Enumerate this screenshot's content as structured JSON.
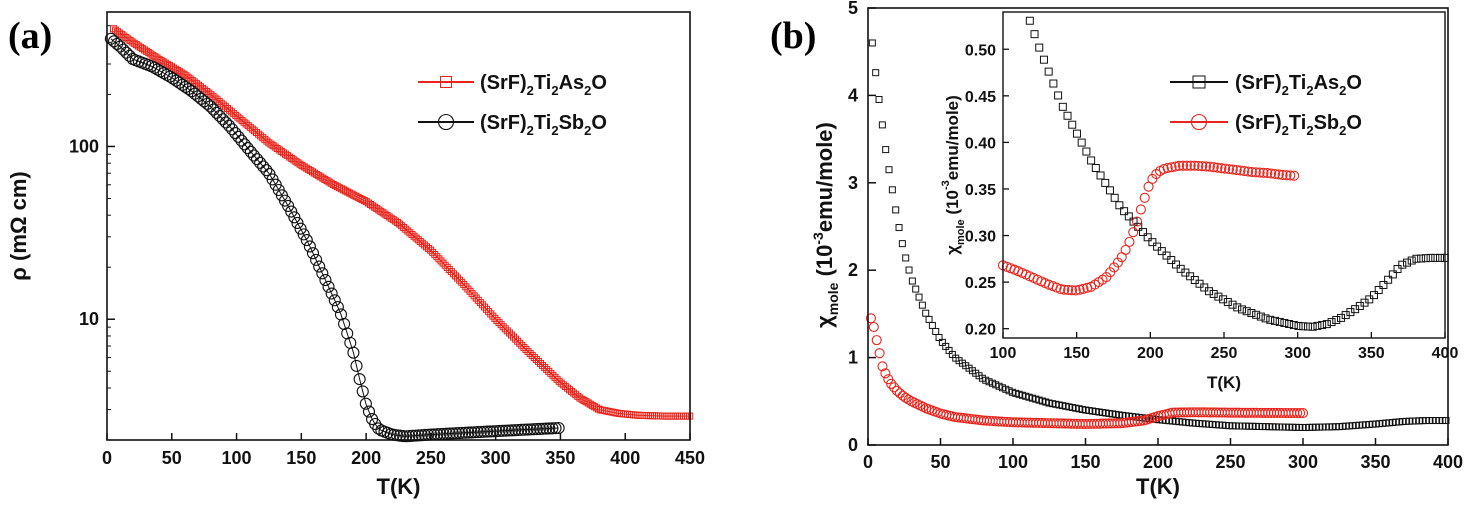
{
  "chart_data": [
    {
      "panel": "(a)",
      "type": "scatter",
      "xlabel": "T(K)",
      "ylabel": "ρ (mΩ cm)",
      "yscale": "log",
      "xlim": [
        0,
        450
      ],
      "ylim": [
        2,
        600
      ],
      "xticks": [
        0,
        50,
        100,
        150,
        200,
        250,
        300,
        350,
        400,
        450
      ],
      "yticks": [
        10,
        100
      ],
      "legend_position": "top-right",
      "series": [
        {
          "name": "(SrF)2Ti2As2O",
          "legend": {
            "base": "(SrF)",
            "s1": "2",
            "mid1": "Ti",
            "s2": "2",
            "mid2": "As",
            "s3": "2",
            "tail": "O"
          },
          "color": "#e8251c",
          "marker": "square",
          "x": [
            5,
            20,
            40,
            60,
            80,
            100,
            125,
            150,
            175,
            200,
            225,
            250,
            275,
            300,
            325,
            350,
            365,
            380,
            395,
            410,
            430,
            450
          ],
          "y": [
            480,
            400,
            320,
            260,
            200,
            150,
            105,
            78,
            60,
            48,
            36,
            25,
            16,
            10,
            6.5,
            4.3,
            3.5,
            3.0,
            2.85,
            2.78,
            2.75,
            2.75
          ]
        },
        {
          "name": "(SrF)2Ti2Sb2O",
          "legend": {
            "base": "(SrF)",
            "s1": "2",
            "mid1": "Ti",
            "s2": "2",
            "mid2": "Sb",
            "s3": "2",
            "tail": "O"
          },
          "color": "#111111",
          "marker": "circle",
          "x": [
            3,
            10,
            20,
            35,
            50,
            65,
            80,
            95,
            110,
            125,
            140,
            155,
            170,
            180,
            190,
            195,
            200,
            205,
            210,
            220,
            230,
            250,
            275,
            300,
            325,
            350
          ],
          "y": [
            420,
            380,
            320,
            290,
            250,
            210,
            170,
            130,
            95,
            70,
            45,
            28,
            16,
            11,
            6.5,
            4.5,
            3.2,
            2.6,
            2.3,
            2.15,
            2.1,
            2.15,
            2.2,
            2.25,
            2.3,
            2.35
          ]
        }
      ]
    },
    {
      "panel": "(b)",
      "type": "scatter",
      "xlabel": "T(K)",
      "ylabel": {
        "chi": "χ",
        "sub": "mole",
        "open": "(10",
        "sup": "-3",
        "close": "emu/mole)"
      },
      "xlim": [
        0,
        400
      ],
      "ylim": [
        0,
        5
      ],
      "xticks": [
        0,
        50,
        100,
        150,
        200,
        250,
        300,
        350,
        400
      ],
      "yticks": [
        0,
        1,
        2,
        3,
        4,
        5
      ],
      "legend_position": "inset top-right",
      "series": [
        {
          "name": "(SrF)2Ti2As2O",
          "legend": {
            "base": "(SrF)",
            "s1": "2",
            "mid1": "Ti",
            "s2": "2",
            "mid2": "As",
            "s3": "2",
            "tail": "O"
          },
          "color": "#111111",
          "marker": "square",
          "x": [
            3,
            5,
            8,
            12,
            16,
            20,
            25,
            30,
            40,
            50,
            60,
            80,
            100,
            125,
            150,
            175,
            200,
            225,
            250,
            275,
            300,
            325,
            350,
            370,
            385,
            400
          ],
          "y": [
            4.6,
            4.3,
            3.9,
            3.4,
            3.0,
            2.6,
            2.2,
            1.9,
            1.5,
            1.2,
            1.0,
            0.75,
            0.6,
            0.48,
            0.4,
            0.34,
            0.29,
            0.25,
            0.22,
            0.21,
            0.2,
            0.21,
            0.24,
            0.27,
            0.28,
            0.28
          ]
        },
        {
          "name": "(SrF)2Ti2Sb2O",
          "legend": {
            "base": "(SrF)",
            "s1": "2",
            "mid1": "Ti",
            "s2": "2",
            "mid2": "Sb",
            "s3": "2",
            "tail": "O"
          },
          "color": "#e8251c",
          "marker": "circle",
          "x": [
            2,
            4,
            6,
            8,
            10,
            13,
            16,
            20,
            25,
            30,
            40,
            50,
            60,
            80,
            100,
            125,
            150,
            175,
            190,
            200,
            210,
            225,
            250,
            275,
            300
          ],
          "y": [
            1.45,
            1.35,
            1.2,
            1.05,
            0.9,
            0.78,
            0.7,
            0.62,
            0.55,
            0.5,
            0.42,
            0.36,
            0.32,
            0.28,
            0.26,
            0.25,
            0.24,
            0.25,
            0.28,
            0.33,
            0.37,
            0.375,
            0.37,
            0.367,
            0.365
          ]
        }
      ],
      "inset": {
        "xlabel": "T(K)",
        "ylabel": {
          "chi": "χ",
          "sub": "mole",
          "open": "(10",
          "sup": "-3",
          "close": "emu/mole)"
        },
        "xlim": [
          100,
          400
        ],
        "ylim": [
          0.19,
          0.54
        ],
        "xticks": [
          100,
          150,
          200,
          250,
          300,
          350,
          400
        ],
        "yticks": [
          0.2,
          0.25,
          0.3,
          0.35,
          0.4,
          0.45,
          0.5
        ],
        "ytick_labels": [
          "0.20",
          "0.25",
          "0.30",
          "0.35",
          "0.40",
          "0.45",
          "0.50"
        ],
        "series": [
          {
            "name": "(SrF)2Ti2As2O",
            "color": "#111111",
            "marker": "square",
            "x": [
              115,
              125,
              140,
              160,
              180,
              200,
              220,
              240,
              260,
              280,
              300,
              310,
              320,
              330,
              340,
              350,
              360,
              370,
              380,
              390,
              400
            ],
            "y": [
              0.545,
              0.5,
              0.44,
              0.38,
              0.33,
              0.295,
              0.265,
              0.24,
              0.222,
              0.21,
              0.203,
              0.202,
              0.205,
              0.212,
              0.222,
              0.233,
              0.25,
              0.268,
              0.275,
              0.276,
              0.276
            ]
          },
          {
            "name": "(SrF)2Ti2Sb2O",
            "color": "#e8251c",
            "marker": "circle",
            "x": [
              100,
              110,
              120,
              130,
              140,
              150,
              160,
              170,
              180,
              185,
              190,
              195,
              200,
              205,
              210,
              220,
              230,
              240,
              250,
              260,
              270,
              280,
              290,
              300
            ],
            "y": [
              0.268,
              0.262,
              0.255,
              0.248,
              0.242,
              0.241,
              0.245,
              0.255,
              0.275,
              0.29,
              0.31,
              0.335,
              0.358,
              0.368,
              0.372,
              0.375,
              0.375,
              0.374,
              0.372,
              0.37,
              0.368,
              0.367,
              0.365,
              0.364
            ]
          }
        ]
      }
    }
  ],
  "labels": {
    "panel_a": "(a)",
    "panel_b": "(b)"
  }
}
